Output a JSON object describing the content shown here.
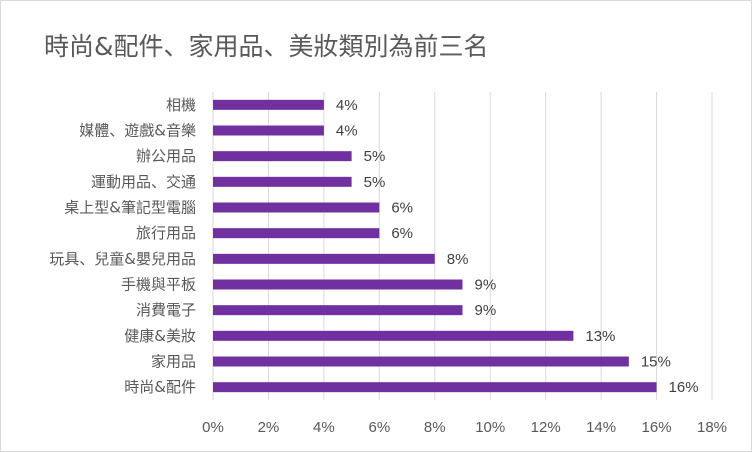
{
  "chart_data": {
    "type": "bar",
    "orientation": "horizontal",
    "title": "時尚&配件、家用品、美妝類別為前三名",
    "categories": [
      "相機",
      "媒體、遊戲&音樂",
      "辦公用品",
      "運動用品、交通",
      "桌上型&筆記型電腦",
      "旅行用品",
      "玩具、兒童&嬰兒用品",
      "手機與平板",
      "消費電子",
      "健康&美妝",
      "家用品",
      "時尚&配件"
    ],
    "values": [
      4,
      4,
      5,
      5,
      6,
      6,
      8,
      9,
      9,
      13,
      15,
      16
    ],
    "value_labels": [
      "4%",
      "4%",
      "5%",
      "5%",
      "6%",
      "6%",
      "8%",
      "9%",
      "9%",
      "13%",
      "15%",
      "16%"
    ],
    "xlim": [
      0,
      18
    ],
    "xticks": [
      0,
      2,
      4,
      6,
      8,
      10,
      12,
      14,
      16,
      18
    ],
    "xtick_labels": [
      "0%",
      "2%",
      "4%",
      "6%",
      "8%",
      "10%",
      "12%",
      "14%",
      "16%",
      "18%"
    ],
    "grid": true,
    "legend": "none",
    "bar_color": "#7030a0",
    "grid_color": "#d9d9d9"
  }
}
